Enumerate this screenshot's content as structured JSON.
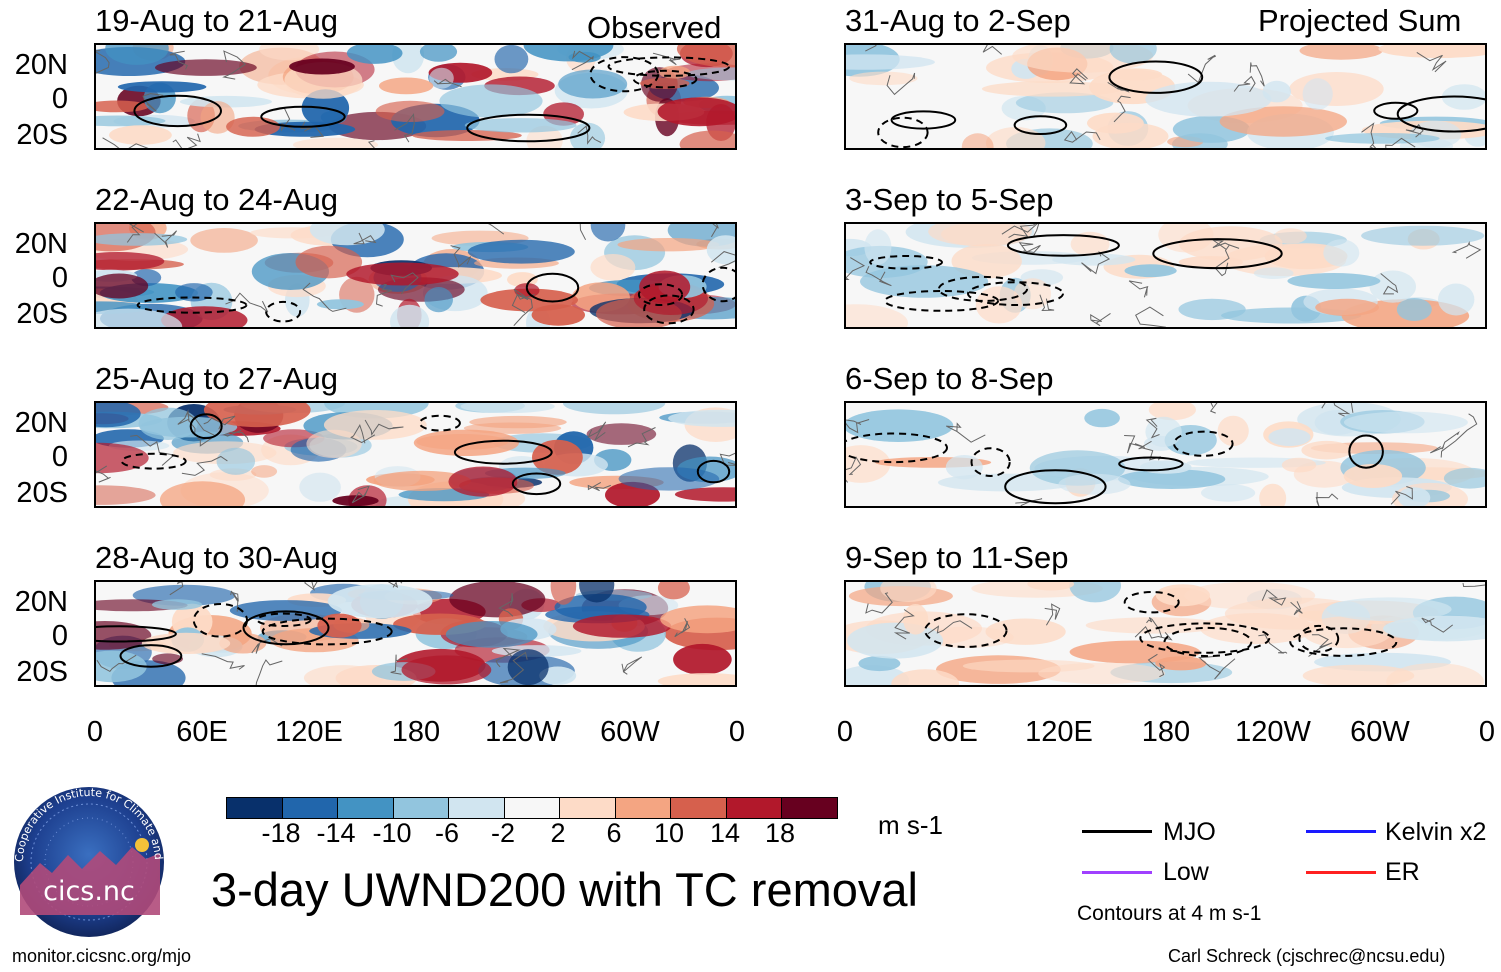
{
  "chart_data": {
    "type": "heatmap",
    "title": "3-day UWND200 with TC removal",
    "left_column_label": "Observed",
    "right_column_label": "Projected Sum",
    "panels_left": [
      {
        "title": "19-Aug to 21-Aug"
      },
      {
        "title": "22-Aug to 24-Aug"
      },
      {
        "title": "25-Aug to 27-Aug"
      },
      {
        "title": "28-Aug to 30-Aug"
      }
    ],
    "panels_right": [
      {
        "title": "31-Aug to 2-Sep"
      },
      {
        "title": "3-Sep to 5-Sep"
      },
      {
        "title": "6-Sep to 8-Sep"
      },
      {
        "title": "9-Sep to 11-Sep"
      }
    ],
    "y_ticks": [
      "20N",
      "0",
      "20S"
    ],
    "x_ticks": [
      "0",
      "60E",
      "120E",
      "180",
      "120W",
      "60W",
      "0"
    ],
    "colorbar": {
      "units": "m s-1",
      "ticks": [
        "-18",
        "-14",
        "-10",
        "-6",
        "-2",
        "2",
        "6",
        "10",
        "14",
        "18"
      ],
      "colors": [
        "#08306b",
        "#2166ac",
        "#4393c3",
        "#92c5de",
        "#d1e5f0",
        "#f7f7f7",
        "#fddbc7",
        "#f4a582",
        "#d6604d",
        "#b2182b",
        "#67001f"
      ]
    },
    "legend": [
      {
        "label": "MJO",
        "color": "#000000"
      },
      {
        "label": "Kelvin x2",
        "color": "#1a1aff"
      },
      {
        "label": "Low",
        "color": "#a040ff"
      },
      {
        "label": "ER",
        "color": "#ff2020"
      }
    ],
    "contour_note": "Contours at 4 m s-1"
  },
  "footer": {
    "logo_text": "cics.nc",
    "logo_ring_text": "Cooperative Institute for Climate and Satellites",
    "url": "monitor.cicsnc.org/mjo",
    "credit": "Carl Schreck (cjschrec@ncsu.edu)"
  }
}
